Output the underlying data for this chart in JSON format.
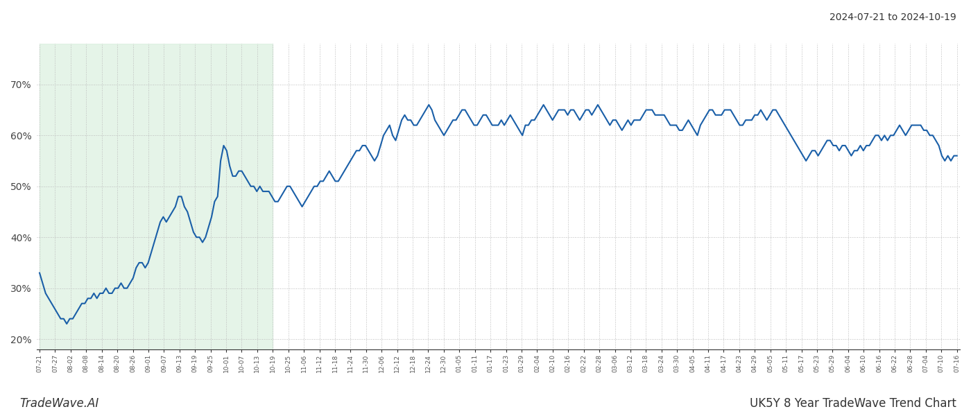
{
  "title_top_right": "2024-07-21 to 2024-10-19",
  "title_bottom_left": "TradeWave.AI",
  "title_bottom_right": "UK5Y 8 Year TradeWave Trend Chart",
  "line_color": "#1a5fa8",
  "line_width": 1.5,
  "highlight_color": "#d4edda",
  "highlight_alpha": 0.6,
  "ylim": [
    18,
    78
  ],
  "yticks": [
    20,
    30,
    40,
    50,
    60,
    70
  ],
  "background_color": "#ffffff",
  "grid_color": "#bbbbbb",
  "grid_style": ":",
  "x_labels": [
    "07-21",
    "07-27",
    "08-02",
    "08-08",
    "08-14",
    "08-20",
    "08-26",
    "09-01",
    "09-07",
    "09-13",
    "09-19",
    "09-25",
    "10-01",
    "10-07",
    "10-13",
    "10-19",
    "10-25",
    "11-06",
    "11-12",
    "11-18",
    "11-24",
    "11-30",
    "12-06",
    "12-12",
    "12-18",
    "12-24",
    "12-30",
    "01-05",
    "01-11",
    "01-17",
    "01-23",
    "01-29",
    "02-04",
    "02-10",
    "02-16",
    "02-22",
    "02-28",
    "03-06",
    "03-12",
    "03-18",
    "03-24",
    "03-30",
    "04-05",
    "04-11",
    "04-17",
    "04-23",
    "04-29",
    "05-05",
    "05-11",
    "05-17",
    "05-23",
    "05-29",
    "06-04",
    "06-10",
    "06-16",
    "06-22",
    "06-28",
    "07-04",
    "07-10",
    "07-16"
  ],
  "highlight_label_start": "07-21",
  "highlight_label_end": "10-19",
  "values": [
    33,
    31,
    29,
    28,
    27,
    26,
    25,
    24,
    24,
    23,
    24,
    24,
    25,
    26,
    27,
    27,
    28,
    28,
    29,
    28,
    29,
    29,
    30,
    29,
    29,
    30,
    30,
    31,
    30,
    30,
    31,
    32,
    34,
    35,
    35,
    34,
    35,
    37,
    39,
    41,
    43,
    44,
    43,
    44,
    45,
    46,
    48,
    48,
    46,
    45,
    43,
    41,
    40,
    40,
    39,
    40,
    42,
    44,
    47,
    48,
    55,
    58,
    57,
    54,
    52,
    52,
    53,
    53,
    52,
    51,
    50,
    50,
    49,
    50,
    49,
    49,
    49,
    48,
    47,
    47,
    48,
    49,
    50,
    50,
    49,
    48,
    47,
    46,
    47,
    48,
    49,
    50,
    50,
    51,
    51,
    52,
    53,
    52,
    51,
    51,
    52,
    53,
    54,
    55,
    56,
    57,
    57,
    58,
    58,
    57,
    56,
    55,
    56,
    58,
    60,
    61,
    62,
    60,
    59,
    61,
    63,
    64,
    63,
    63,
    62,
    62,
    63,
    64,
    65,
    66,
    65,
    63,
    62,
    61,
    60,
    61,
    62,
    63,
    63,
    64,
    65,
    65,
    64,
    63,
    62,
    62,
    63,
    64,
    64,
    63,
    62,
    62,
    62,
    63,
    62,
    63,
    64,
    63,
    62,
    61,
    60,
    62,
    62,
    63,
    63,
    64,
    65,
    66,
    65,
    64,
    63,
    64,
    65,
    65,
    65,
    64,
    65,
    65,
    64,
    63,
    64,
    65,
    65,
    64,
    65,
    66,
    65,
    64,
    63,
    62,
    63,
    63,
    62,
    61,
    62,
    63,
    62,
    63,
    63,
    63,
    64,
    65,
    65,
    65,
    64,
    64,
    64,
    64,
    63,
    62,
    62,
    62,
    61,
    61,
    62,
    63,
    62,
    61,
    60,
    62,
    63,
    64,
    65,
    65,
    64,
    64,
    64,
    65,
    65,
    65,
    64,
    63,
    62,
    62,
    63,
    63,
    63,
    64,
    64,
    65,
    64,
    63,
    64,
    65,
    65,
    64,
    63,
    62,
    61,
    60,
    59,
    58,
    57,
    56,
    55,
    56,
    57,
    57,
    56,
    57,
    58,
    59,
    59,
    58,
    58,
    57,
    58,
    58,
    57,
    56,
    57,
    57,
    58,
    57,
    58,
    58,
    59,
    60,
    60,
    59,
    60,
    59,
    60,
    60,
    61,
    62,
    61,
    60,
    61,
    62,
    62,
    62,
    62,
    61,
    61,
    60,
    60,
    59,
    58,
    56,
    55,
    56,
    55,
    56,
    56
  ]
}
